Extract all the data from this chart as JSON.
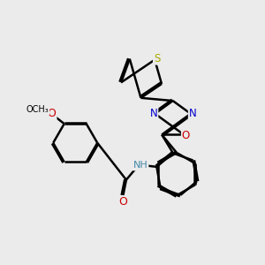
{
  "background_color": "#ebebeb",
  "atom_colors": {
    "C": "#000000",
    "N": "#0000cc",
    "O": "#cc0000",
    "S": "#aaaa00",
    "H": "#555555"
  },
  "bond_color": "#000000",
  "bond_lw": 1.8,
  "dbo": 0.055,
  "label_fontsize": 8.5,
  "figsize": [
    3.0,
    3.0
  ],
  "dpi": 100
}
